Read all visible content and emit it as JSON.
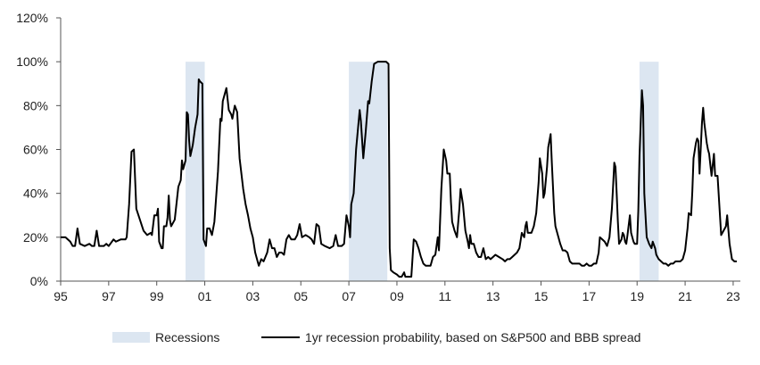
{
  "chart_data": {
    "type": "line",
    "title": "",
    "xlabel": "",
    "ylabel": "",
    "xlim": [
      1995.0,
      2023.3
    ],
    "ylim": [
      0,
      120
    ],
    "x_tick_values": [
      1995,
      1997,
      1999,
      2001,
      2003,
      2005,
      2007,
      2009,
      2011,
      2013,
      2015,
      2017,
      2019,
      2021,
      2023
    ],
    "x_tick_labels": [
      "95",
      "97",
      "99",
      "01",
      "03",
      "05",
      "07",
      "09",
      "11",
      "13",
      "15",
      "17",
      "19",
      "21",
      "23"
    ],
    "y_tick_values": [
      0,
      20,
      40,
      60,
      80,
      100,
      120
    ],
    "y_tick_labels": [
      "0%",
      "20%",
      "40%",
      "60%",
      "80%",
      "100%",
      "120%"
    ],
    "grid": false,
    "legend_position": "bottom",
    "recessions": {
      "name": "Recessions",
      "color": "#dce6f1",
      "periods": [
        [
          2000.2,
          2001.0
        ],
        [
          2007.0,
          2008.6
        ],
        [
          2019.1,
          2019.9
        ]
      ]
    },
    "series": [
      {
        "name": "1yr recession probability, based on S&P500 and BBB spread",
        "color": "#000000",
        "points": [
          [
            1995.0,
            20
          ],
          [
            1995.2,
            20
          ],
          [
            1995.4,
            18
          ],
          [
            1995.5,
            16
          ],
          [
            1995.6,
            16
          ],
          [
            1995.7,
            24
          ],
          [
            1995.8,
            17
          ],
          [
            1996.0,
            16
          ],
          [
            1996.2,
            17
          ],
          [
            1996.3,
            16
          ],
          [
            1996.4,
            16
          ],
          [
            1996.5,
            23
          ],
          [
            1996.6,
            16
          ],
          [
            1996.8,
            16
          ],
          [
            1996.9,
            17
          ],
          [
            1997.0,
            16
          ],
          [
            1997.2,
            19
          ],
          [
            1997.3,
            18
          ],
          [
            1997.5,
            19
          ],
          [
            1997.6,
            19
          ],
          [
            1997.7,
            19
          ],
          [
            1997.75,
            20
          ],
          [
            1997.85,
            35
          ],
          [
            1997.95,
            59
          ],
          [
            1998.05,
            60
          ],
          [
            1998.15,
            33
          ],
          [
            1998.3,
            28
          ],
          [
            1998.45,
            23
          ],
          [
            1998.6,
            21
          ],
          [
            1998.75,
            22
          ],
          [
            1998.8,
            21
          ],
          [
            1998.9,
            30
          ],
          [
            1999.0,
            30
          ],
          [
            1999.05,
            33
          ],
          [
            1999.1,
            18
          ],
          [
            1999.2,
            15
          ],
          [
            1999.25,
            15
          ],
          [
            1999.3,
            25
          ],
          [
            1999.4,
            25
          ],
          [
            1999.45,
            29
          ],
          [
            1999.5,
            39
          ],
          [
            1999.55,
            28
          ],
          [
            1999.6,
            25
          ],
          [
            1999.75,
            28
          ],
          [
            1999.8,
            33
          ],
          [
            1999.9,
            43
          ],
          [
            2000.0,
            46
          ],
          [
            2000.05,
            55
          ],
          [
            2000.1,
            51
          ],
          [
            2000.2,
            55
          ],
          [
            2000.25,
            77
          ],
          [
            2000.3,
            76
          ],
          [
            2000.35,
            64
          ],
          [
            2000.4,
            57
          ],
          [
            2000.5,
            62
          ],
          [
            2000.6,
            70
          ],
          [
            2000.7,
            76
          ],
          [
            2000.75,
            92
          ],
          [
            2000.8,
            91
          ],
          [
            2000.9,
            90
          ],
          [
            2000.95,
            19
          ],
          [
            2001.05,
            16
          ],
          [
            2001.1,
            24
          ],
          [
            2001.2,
            24
          ],
          [
            2001.3,
            21
          ],
          [
            2001.4,
            27
          ],
          [
            2001.55,
            50
          ],
          [
            2001.65,
            74
          ],
          [
            2001.7,
            73
          ],
          [
            2001.75,
            82
          ],
          [
            2001.9,
            88
          ],
          [
            2002.0,
            78
          ],
          [
            2002.1,
            76
          ],
          [
            2002.15,
            74
          ],
          [
            2002.25,
            80
          ],
          [
            2002.35,
            77
          ],
          [
            2002.45,
            56
          ],
          [
            2002.6,
            42
          ],
          [
            2002.7,
            35
          ],
          [
            2002.8,
            30
          ],
          [
            2002.9,
            24
          ],
          [
            2003.0,
            20
          ],
          [
            2003.1,
            13
          ],
          [
            2003.2,
            9
          ],
          [
            2003.25,
            7
          ],
          [
            2003.35,
            10
          ],
          [
            2003.45,
            9
          ],
          [
            2003.6,
            13
          ],
          [
            2003.7,
            19
          ],
          [
            2003.8,
            15
          ],
          [
            2003.9,
            15
          ],
          [
            2004.0,
            11
          ],
          [
            2004.1,
            13
          ],
          [
            2004.2,
            13
          ],
          [
            2004.3,
            12
          ],
          [
            2004.4,
            19
          ],
          [
            2004.5,
            21
          ],
          [
            2004.6,
            19
          ],
          [
            2004.75,
            19
          ],
          [
            2004.85,
            21
          ],
          [
            2004.95,
            26
          ],
          [
            2005.05,
            20
          ],
          [
            2005.2,
            21
          ],
          [
            2005.35,
            20
          ],
          [
            2005.45,
            19
          ],
          [
            2005.55,
            17
          ],
          [
            2005.65,
            26
          ],
          [
            2005.75,
            25
          ],
          [
            2005.85,
            17
          ],
          [
            2006.0,
            16
          ],
          [
            2006.2,
            15
          ],
          [
            2006.35,
            16
          ],
          [
            2006.45,
            21
          ],
          [
            2006.55,
            16
          ],
          [
            2006.7,
            16
          ],
          [
            2006.8,
            17
          ],
          [
            2006.9,
            30
          ],
          [
            2007.0,
            25
          ],
          [
            2007.05,
            20
          ],
          [
            2007.1,
            35
          ],
          [
            2007.2,
            40
          ],
          [
            2007.3,
            60
          ],
          [
            2007.45,
            78
          ],
          [
            2007.5,
            73
          ],
          [
            2007.6,
            56
          ],
          [
            2007.7,
            68
          ],
          [
            2007.8,
            82
          ],
          [
            2007.85,
            81
          ],
          [
            2007.95,
            91
          ],
          [
            2008.05,
            99
          ],
          [
            2008.2,
            100
          ],
          [
            2008.4,
            100
          ],
          [
            2008.55,
            100
          ],
          [
            2008.65,
            99
          ],
          [
            2008.7,
            15
          ],
          [
            2008.75,
            5
          ],
          [
            2008.85,
            4
          ],
          [
            2009.0,
            3
          ],
          [
            2009.1,
            2
          ],
          [
            2009.2,
            2
          ],
          [
            2009.3,
            4
          ],
          [
            2009.35,
            2
          ],
          [
            2009.5,
            2
          ],
          [
            2009.6,
            2
          ],
          [
            2009.7,
            19
          ],
          [
            2009.8,
            18
          ],
          [
            2009.9,
            15
          ],
          [
            2010.0,
            11
          ],
          [
            2010.1,
            8
          ],
          [
            2010.2,
            7
          ],
          [
            2010.3,
            7
          ],
          [
            2010.4,
            7
          ],
          [
            2010.5,
            11
          ],
          [
            2010.6,
            12
          ],
          [
            2010.7,
            20
          ],
          [
            2010.75,
            14
          ],
          [
            2010.85,
            42
          ],
          [
            2010.95,
            60
          ],
          [
            2011.05,
            55
          ],
          [
            2011.1,
            49
          ],
          [
            2011.2,
            49
          ],
          [
            2011.25,
            36
          ],
          [
            2011.3,
            27
          ],
          [
            2011.4,
            23
          ],
          [
            2011.5,
            20
          ],
          [
            2011.6,
            33
          ],
          [
            2011.65,
            42
          ],
          [
            2011.75,
            35
          ],
          [
            2011.85,
            23
          ],
          [
            2011.95,
            18
          ],
          [
            2012.0,
            15
          ],
          [
            2012.05,
            21
          ],
          [
            2012.1,
            17
          ],
          [
            2012.2,
            17
          ],
          [
            2012.3,
            13
          ],
          [
            2012.4,
            11
          ],
          [
            2012.5,
            11
          ],
          [
            2012.6,
            15
          ],
          [
            2012.7,
            10
          ],
          [
            2012.8,
            11
          ],
          [
            2012.9,
            10
          ],
          [
            2013.0,
            11
          ],
          [
            2013.1,
            12
          ],
          [
            2013.25,
            11
          ],
          [
            2013.4,
            10
          ],
          [
            2013.5,
            9
          ],
          [
            2013.6,
            10
          ],
          [
            2013.7,
            10
          ],
          [
            2013.8,
            11
          ],
          [
            2013.9,
            12
          ],
          [
            2014.0,
            13
          ],
          [
            2014.1,
            15
          ],
          [
            2014.2,
            22
          ],
          [
            2014.3,
            20
          ],
          [
            2014.35,
            25
          ],
          [
            2014.4,
            27
          ],
          [
            2014.45,
            22
          ],
          [
            2014.55,
            22
          ],
          [
            2014.6,
            22
          ],
          [
            2014.7,
            25
          ],
          [
            2014.8,
            31
          ],
          [
            2014.9,
            45
          ],
          [
            2014.95,
            56
          ],
          [
            2015.05,
            49
          ],
          [
            2015.1,
            38
          ],
          [
            2015.15,
            40
          ],
          [
            2015.25,
            52
          ],
          [
            2015.3,
            61
          ],
          [
            2015.4,
            67
          ],
          [
            2015.45,
            54
          ],
          [
            2015.55,
            31
          ],
          [
            2015.6,
            25
          ],
          [
            2015.7,
            21
          ],
          [
            2015.8,
            17
          ],
          [
            2015.9,
            14
          ],
          [
            2016.0,
            14
          ],
          [
            2016.1,
            13
          ],
          [
            2016.2,
            9
          ],
          [
            2016.3,
            8
          ],
          [
            2016.4,
            8
          ],
          [
            2016.5,
            8
          ],
          [
            2016.6,
            8
          ],
          [
            2016.7,
            7
          ],
          [
            2016.8,
            7
          ],
          [
            2016.9,
            8
          ],
          [
            2017.0,
            7
          ],
          [
            2017.1,
            7
          ],
          [
            2017.2,
            8
          ],
          [
            2017.3,
            8
          ],
          [
            2017.4,
            13
          ],
          [
            2017.45,
            20
          ],
          [
            2017.55,
            19
          ],
          [
            2017.65,
            18
          ],
          [
            2017.75,
            16
          ],
          [
            2017.85,
            20
          ],
          [
            2017.95,
            33
          ],
          [
            2018.0,
            43
          ],
          [
            2018.05,
            54
          ],
          [
            2018.1,
            52
          ],
          [
            2018.15,
            40
          ],
          [
            2018.2,
            27
          ],
          [
            2018.25,
            17
          ],
          [
            2018.35,
            19
          ],
          [
            2018.4,
            22
          ],
          [
            2018.45,
            21
          ],
          [
            2018.5,
            18
          ],
          [
            2018.55,
            17
          ],
          [
            2018.6,
            21
          ],
          [
            2018.7,
            30
          ],
          [
            2018.75,
            22
          ],
          [
            2018.85,
            18
          ],
          [
            2018.9,
            17
          ],
          [
            2019.0,
            17
          ],
          [
            2019.05,
            32
          ],
          [
            2019.1,
            57
          ],
          [
            2019.2,
            87
          ],
          [
            2019.25,
            80
          ],
          [
            2019.3,
            40
          ],
          [
            2019.35,
            30
          ],
          [
            2019.4,
            20
          ],
          [
            2019.5,
            17
          ],
          [
            2019.6,
            15
          ],
          [
            2019.65,
            18
          ],
          [
            2019.75,
            15
          ],
          [
            2019.8,
            12
          ],
          [
            2019.9,
            10
          ],
          [
            2020.0,
            9
          ],
          [
            2020.1,
            8
          ],
          [
            2020.2,
            8
          ],
          [
            2020.3,
            7
          ],
          [
            2020.4,
            8
          ],
          [
            2020.5,
            8
          ],
          [
            2020.6,
            9
          ],
          [
            2020.7,
            9
          ],
          [
            2020.8,
            9
          ],
          [
            2020.9,
            10
          ],
          [
            2021.0,
            14
          ],
          [
            2021.1,
            24
          ],
          [
            2021.15,
            31
          ],
          [
            2021.25,
            30
          ],
          [
            2021.3,
            41
          ],
          [
            2021.35,
            56
          ],
          [
            2021.45,
            63
          ],
          [
            2021.5,
            65
          ],
          [
            2021.55,
            64
          ],
          [
            2021.6,
            49
          ],
          [
            2021.7,
            72
          ],
          [
            2021.75,
            79
          ],
          [
            2021.8,
            72
          ],
          [
            2021.9,
            63
          ],
          [
            2021.95,
            60
          ],
          [
            2022.0,
            58
          ],
          [
            2022.05,
            53
          ],
          [
            2022.1,
            48
          ],
          [
            2022.2,
            58
          ],
          [
            2022.25,
            48
          ],
          [
            2022.35,
            48
          ],
          [
            2022.45,
            30
          ],
          [
            2022.5,
            21
          ],
          [
            2022.6,
            23
          ],
          [
            2022.7,
            25
          ],
          [
            2022.75,
            30
          ],
          [
            2022.85,
            17
          ],
          [
            2022.95,
            10
          ],
          [
            2023.05,
            9
          ],
          [
            2023.15,
            9
          ]
        ]
      }
    ]
  }
}
